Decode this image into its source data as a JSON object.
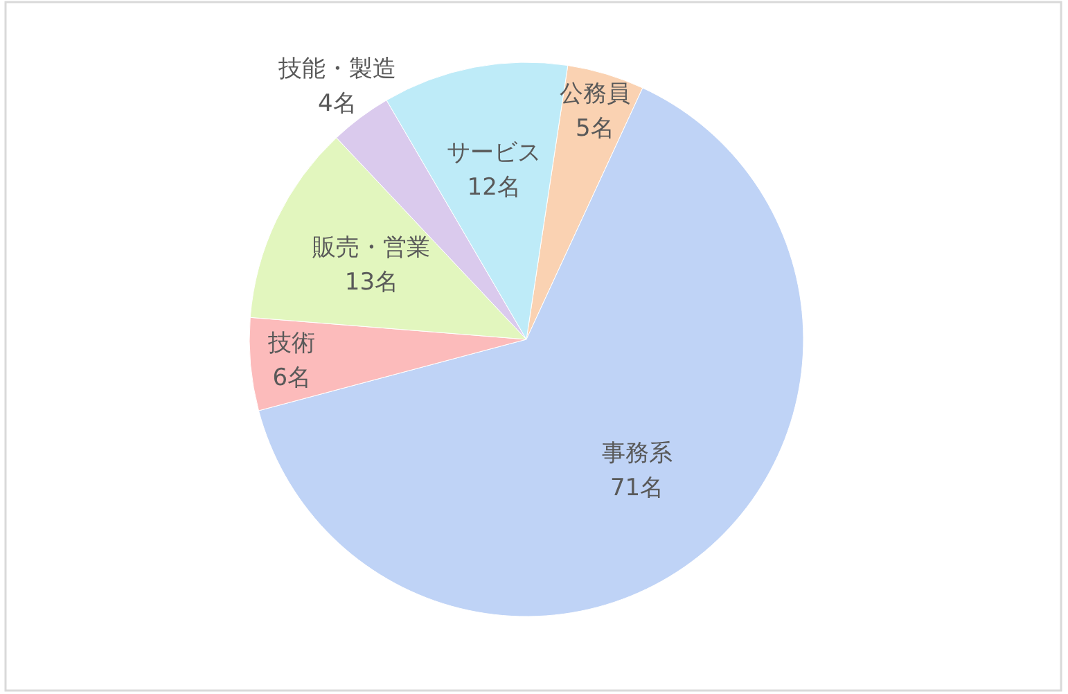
{
  "chart_data": {
    "type": "pie",
    "categories": [
      "公務員",
      "事務系",
      "技術",
      "販売・営業",
      "技能・製造",
      "サービス"
    ],
    "values": [
      5,
      71,
      6,
      13,
      4,
      12
    ],
    "value_labels": [
      "5名",
      "71名",
      "6名",
      "13名",
      "4名",
      "12名"
    ],
    "colors": [
      "#fad2b2",
      "#bfd3f6",
      "#fcbbbb",
      "#e2f6be",
      "#dacaed",
      "#beebf8"
    ]
  }
}
